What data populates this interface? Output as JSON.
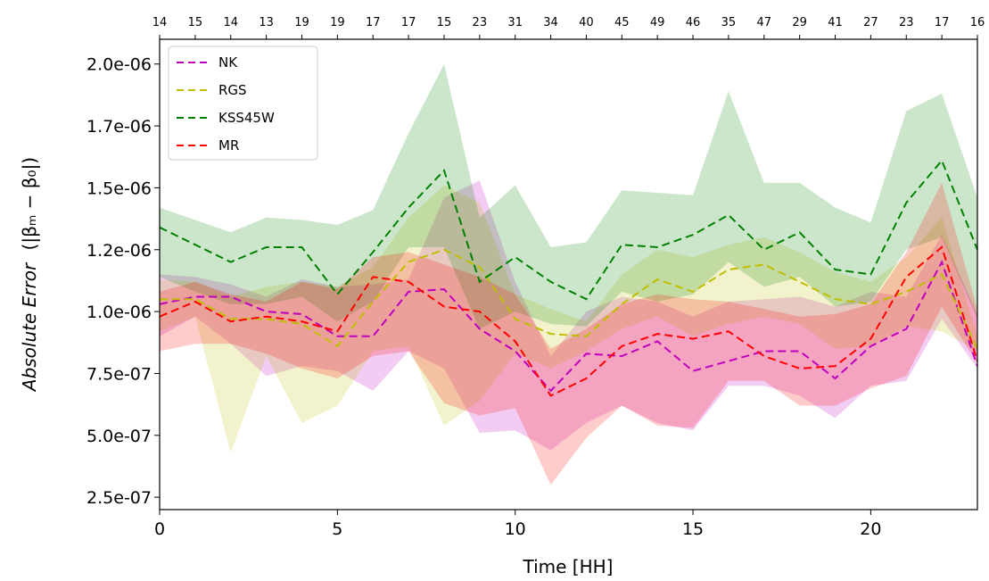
{
  "chart_data": {
    "type": "line",
    "xlabel": "Time [HH]",
    "ylabel_italic": "Absolute Error",
    "ylabel_formula": "(|βₘ − β₀|)",
    "xlim": [
      0,
      23
    ],
    "ylim": [
      2e-07,
      2.1e-06
    ],
    "x_ticks": [
      0,
      5,
      10,
      15,
      20
    ],
    "x_tick_labels": [
      "0",
      "5",
      "10",
      "15",
      "20"
    ],
    "y_ticks": [
      2.5e-07,
      5e-07,
      7.5e-07,
      1e-06,
      1.25e-06,
      1.5e-06,
      1.75e-06,
      2e-06
    ],
    "y_tick_labels": [
      "2.5e-07",
      "5.0e-07",
      "7.5e-07",
      "1.0e-06",
      "1.2e-06",
      "1.5e-06",
      "1.7e-06",
      "2.0e-06"
    ],
    "top_tick_labels": [
      "14",
      "15",
      "14",
      "13",
      "19",
      "19",
      "17",
      "17",
      "15",
      "23",
      "31",
      "34",
      "40",
      "45",
      "49",
      "46",
      "35",
      "47",
      "29",
      "41",
      "27",
      "23",
      "17",
      "16"
    ],
    "legend_position": "upper-left",
    "x": [
      0,
      1,
      2,
      3,
      4,
      5,
      6,
      7,
      8,
      9,
      10,
      11,
      12,
      13,
      14,
      15,
      16,
      17,
      18,
      19,
      20,
      21,
      22,
      23
    ],
    "series": [
      {
        "name": "NK",
        "color": "#bf00bf",
        "values": [
          1.03e-06,
          1.06e-06,
          1.06e-06,
          1e-06,
          9.9e-07,
          9e-07,
          9e-07,
          1.08e-06,
          1.09e-06,
          9.3e-07,
          8.4e-07,
          6.8e-07,
          8.3e-07,
          8.2e-07,
          8.8e-07,
          7.6e-07,
          8e-07,
          8.4e-07,
          8.4e-07,
          7.3e-07,
          8.6e-07,
          9.3e-07,
          1.2e-06,
          7.8e-07
        ],
        "lower": [
          9e-07,
          9.8e-07,
          8.7e-07,
          7.4e-07,
          7.8e-07,
          7.6e-07,
          6.8e-07,
          8.4e-07,
          7.7e-07,
          5.1e-07,
          5.2e-07,
          4.4e-07,
          5.5e-07,
          6.2e-07,
          5.5e-07,
          5.2e-07,
          7e-07,
          7e-07,
          6.6e-07,
          5.7e-07,
          7e-07,
          7.2e-07,
          9.7e-07,
          7.7e-07
        ],
        "upper": [
          1.15e-06,
          1.14e-06,
          1.11e-06,
          1.06e-06,
          1.13e-06,
          1.1e-06,
          1.11e-06,
          1.13e-06,
          1.46e-06,
          1.53e-06,
          1.12e-06,
          8.2e-07,
          1e-06,
          1.06e-06,
          1.04e-06,
          9.8e-07,
          1.04e-06,
          1.05e-06,
          1.06e-06,
          1.02e-06,
          1.08e-06,
          1.06e-06,
          1.31e-06,
          9.9e-07
        ]
      },
      {
        "name": "RGS",
        "color": "#bfbf00",
        "values": [
          1.05e-06,
          1.05e-06,
          9.7e-07,
          9.7e-07,
          9.5e-07,
          8.6e-07,
          1.04e-06,
          1.2e-06,
          1.25e-06,
          1.18e-06,
          9.7e-07,
          9.1e-07,
          9e-07,
          1.03e-06,
          1.13e-06,
          1.08e-06,
          1.17e-06,
          1.19e-06,
          1.12e-06,
          1.05e-06,
          1.03e-06,
          1.08e-06,
          1.15e-06,
          8.5e-07
        ],
        "lower": [
          9.2e-07,
          9.8e-07,
          4.3e-07,
          8.2e-07,
          5.5e-07,
          6.2e-07,
          8.4e-07,
          8.6e-07,
          5.4e-07,
          6.4e-07,
          8.3e-07,
          7.7e-07,
          8.4e-07,
          9.3e-07,
          9.8e-07,
          9e-07,
          9.5e-07,
          9.8e-07,
          9.5e-07,
          8.5e-07,
          8.6e-07,
          9.4e-07,
          9.2e-07,
          8.4e-07
        ],
        "upper": [
          1.13e-06,
          1.12e-06,
          1.06e-06,
          1.1e-06,
          1.12e-06,
          1.1e-06,
          1.18e-06,
          1.38e-06,
          1.51e-06,
          1.44e-06,
          1.07e-06,
          1.01e-06,
          9.6e-07,
          1.15e-06,
          1.25e-06,
          1.22e-06,
          1.27e-06,
          1.3e-06,
          1.24e-06,
          1.16e-06,
          1.12e-06,
          1.22e-06,
          1.38e-06,
          9e-07
        ]
      },
      {
        "name": "KSS45W",
        "color": "#008000",
        "values": [
          1.34e-06,
          1.27e-06,
          1.2e-06,
          1.26e-06,
          1.26e-06,
          1.07e-06,
          1.24e-06,
          1.42e-06,
          1.57e-06,
          1.12e-06,
          1.22e-06,
          1.12e-06,
          1.05e-06,
          1.27e-06,
          1.26e-06,
          1.31e-06,
          1.39e-06,
          1.25e-06,
          1.32e-06,
          1.17e-06,
          1.15e-06,
          1.44e-06,
          1.61e-06,
          1.25e-06
        ],
        "lower": [
          1.14e-06,
          1.08e-06,
          1.03e-06,
          1.03e-06,
          1.06e-06,
          9.6e-07,
          1.04e-06,
          1.26e-06,
          1.26e-06,
          9.3e-07,
          1e-06,
          9.5e-07,
          9.4e-07,
          1.08e-06,
          1.04e-06,
          1.07e-06,
          1.2e-06,
          1.1e-06,
          1.14e-06,
          1.02e-06,
          1.04e-06,
          1.25e-06,
          1.3e-06,
          9.7e-07
        ],
        "upper": [
          1.42e-06,
          1.37e-06,
          1.32e-06,
          1.38e-06,
          1.37e-06,
          1.35e-06,
          1.41e-06,
          1.72e-06,
          2e-06,
          1.38e-06,
          1.51e-06,
          1.26e-06,
          1.28e-06,
          1.49e-06,
          1.48e-06,
          1.47e-06,
          1.89e-06,
          1.52e-06,
          1.52e-06,
          1.42e-06,
          1.36e-06,
          1.81e-06,
          1.88e-06,
          1.46e-06
        ]
      },
      {
        "name": "MR",
        "color": "#ff0000",
        "values": [
          9.8e-07,
          1.04e-06,
          9.6e-07,
          9.8e-07,
          9.6e-07,
          9.2e-07,
          1.14e-06,
          1.12e-06,
          1.02e-06,
          1e-06,
          8.8e-07,
          6.6e-07,
          7.3e-07,
          8.6e-07,
          9.1e-07,
          8.9e-07,
          9.2e-07,
          8.2e-07,
          7.7e-07,
          7.8e-07,
          8.9e-07,
          1.14e-06,
          1.26e-06,
          8e-07
        ],
        "lower": [
          8.4e-07,
          8.7e-07,
          8.7e-07,
          8.3e-07,
          7.7e-07,
          7.3e-07,
          8.2e-07,
          8.4e-07,
          6.3e-07,
          5.8e-07,
          6.1e-07,
          3e-07,
          4.9e-07,
          6.2e-07,
          5.4e-07,
          5.3e-07,
          7.2e-07,
          7.2e-07,
          6.2e-07,
          6.2e-07,
          6.9e-07,
          7.4e-07,
          1.02e-06,
          7.9e-07
        ],
        "upper": [
          1.08e-06,
          1.12e-06,
          1.07e-06,
          1.04e-06,
          1.12e-06,
          1.09e-06,
          1.22e-06,
          1.24e-06,
          1.19e-06,
          1.14e-06,
          1.07e-06,
          8.5e-07,
          9.3e-07,
          1.03e-06,
          1.07e-06,
          1.05e-06,
          1.04e-06,
          1.01e-06,
          9.8e-07,
          9.9e-07,
          1.03e-06,
          1.24e-06,
          1.52e-06,
          1.01e-06
        ]
      }
    ]
  }
}
